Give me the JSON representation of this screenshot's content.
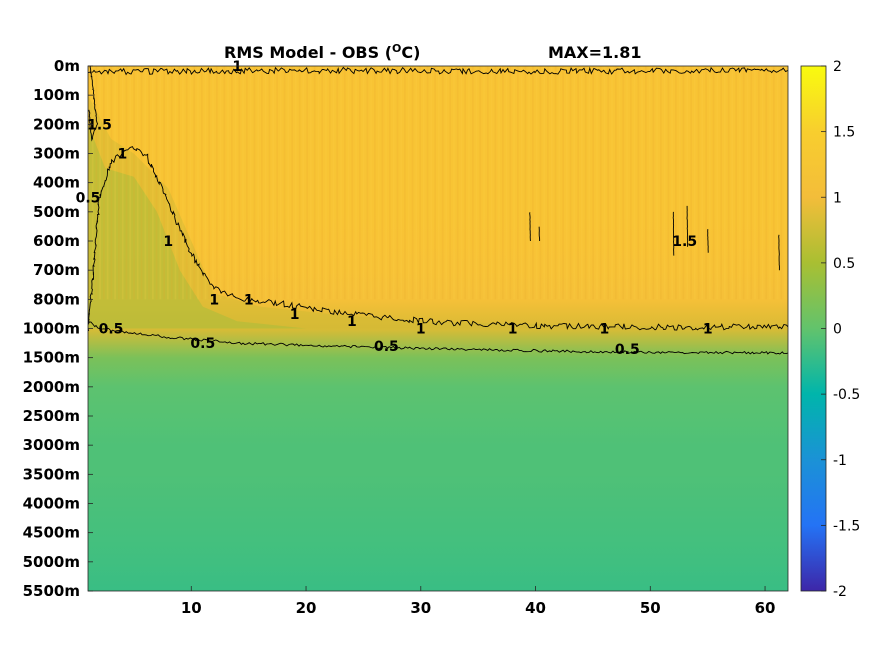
{
  "chart_data": {
    "type": "heatmap",
    "title": "RMS Model - OBS (",
    "title_unit": "O",
    "title_unit_tail": "C)",
    "max_label": "MAX=1.81",
    "colormap": "parula",
    "x_ticks": [
      10,
      20,
      30,
      40,
      50,
      60
    ],
    "x_tick_labels": [
      "10",
      "20",
      "30",
      "40",
      "50",
      "60"
    ],
    "xlim": [
      1,
      62
    ],
    "y_tick_labels": [
      "0m",
      "100m",
      "200m",
      "300m",
      "400m",
      "500m",
      "600m",
      "700m",
      "800m",
      "1000m",
      "1500m",
      "2000m",
      "2500m",
      "3000m",
      "3500m",
      "4000m",
      "4500m",
      "5000m",
      "5500m"
    ],
    "colorbar": {
      "range": [
        -2,
        2
      ],
      "ticks": [
        2,
        1.5,
        1,
        0.5,
        0,
        -0.5,
        -1,
        -1.5,
        -2
      ],
      "tick_labels": [
        "2",
        "1.5",
        "1",
        "0.5",
        "0",
        "-0.5",
        "-1",
        "-1.5",
        "-2"
      ]
    },
    "depth_profile": [
      {
        "depth": "0m",
        "value": 1.38
      },
      {
        "depth": "100m",
        "value": 1.4
      },
      {
        "depth": "200m",
        "value": 1.4
      },
      {
        "depth": "300m",
        "value": 1.4
      },
      {
        "depth": "400m",
        "value": 1.4
      },
      {
        "depth": "500m",
        "value": 1.4
      },
      {
        "depth": "600m",
        "value": 1.38
      },
      {
        "depth": "700m",
        "value": 1.35
      },
      {
        "depth": "800m",
        "value": 1.3
      },
      {
        "depth": "1000m",
        "value": 1.05
      },
      {
        "depth": "1500m",
        "value": 0.6
      },
      {
        "depth": "2000m",
        "value": 0.48
      },
      {
        "depth": "2500m",
        "value": 0.45
      },
      {
        "depth": "3000m",
        "value": 0.42
      },
      {
        "depth": "3500m",
        "value": 0.42
      },
      {
        "depth": "4000m",
        "value": 0.4
      },
      {
        "depth": "4500m",
        "value": 0.38
      },
      {
        "depth": "5000m",
        "value": 0.36
      },
      {
        "depth": "5500m",
        "value": 0.33
      }
    ],
    "contour_levels": [
      0.5,
      1,
      1.5
    ],
    "contour_labels": [
      {
        "text": "1.5",
        "x": 2,
        "depth": "200m"
      },
      {
        "text": "1",
        "x": 4,
        "depth": "300m"
      },
      {
        "text": "0.5",
        "x": 1,
        "depth": "450m"
      },
      {
        "text": "1",
        "x": 8,
        "depth": "600m"
      },
      {
        "text": "1",
        "x": 12,
        "depth": "800m"
      },
      {
        "text": "1",
        "x": 15,
        "depth": "800m"
      },
      {
        "text": "1",
        "x": 19,
        "depth": "900m"
      },
      {
        "text": "1",
        "x": 24,
        "depth": "950m"
      },
      {
        "text": "1",
        "x": 30,
        "depth": "1000m"
      },
      {
        "text": "1",
        "x": 38,
        "depth": "1000m"
      },
      {
        "text": "1",
        "x": 46,
        "depth": "1000m"
      },
      {
        "text": "1",
        "x": 55,
        "depth": "1000m"
      },
      {
        "text": "0.5",
        "x": 3,
        "depth": "1000m"
      },
      {
        "text": "0.5",
        "x": 11,
        "depth": "1250m"
      },
      {
        "text": "0.5",
        "x": 27,
        "depth": "1300m"
      },
      {
        "text": "0.5",
        "x": 48,
        "depth": "1350m"
      },
      {
        "text": "1.5",
        "x": 53,
        "depth": "600m"
      },
      {
        "text": "1",
        "x": 14,
        "depth": "0m"
      }
    ]
  }
}
